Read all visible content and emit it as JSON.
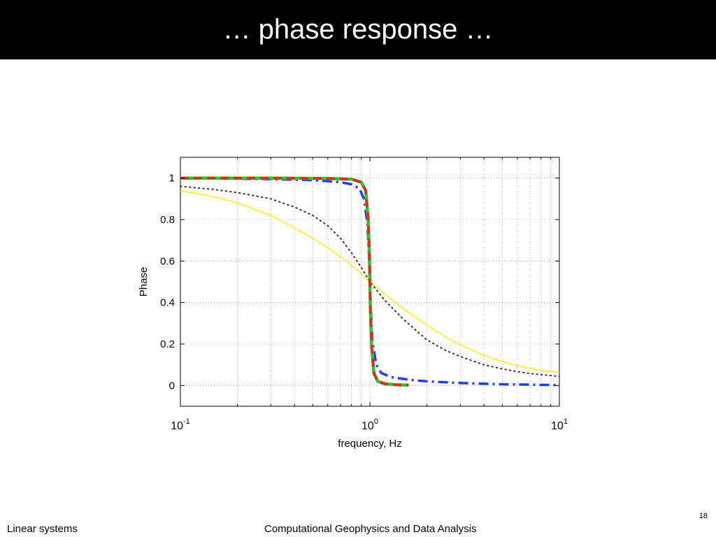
{
  "slide": {
    "title": "… phase response …",
    "number": "18",
    "footer_left": "Linear systems",
    "footer_center": "Computational Geophysics and Data Analysis"
  },
  "chart_data": {
    "type": "line",
    "title": "",
    "xlabel": "frequency, Hz",
    "ylabel": "Phase",
    "xscale": "log",
    "xlim": [
      0.1,
      10
    ],
    "ylim": [
      -0.1,
      1.1
    ],
    "xticks": [
      {
        "value": 0.1,
        "base": "10",
        "exp": "-1"
      },
      {
        "value": 1,
        "base": "10",
        "exp": "0"
      },
      {
        "value": 10,
        "base": "10",
        "exp": "1"
      }
    ],
    "yticks": [
      0,
      0.2,
      0.4,
      0.6,
      0.8,
      1
    ],
    "grid": true,
    "series": [
      {
        "color": "#ffee00",
        "style": "solid",
        "x": [
          0.1,
          0.15,
          0.2,
          0.3,
          0.4,
          0.5,
          0.6,
          0.7,
          0.8,
          0.9,
          1.0,
          1.2,
          1.5,
          2,
          2.5,
          3,
          4,
          5,
          6,
          7,
          8,
          10
        ],
        "y": [
          0.94,
          0.91,
          0.88,
          0.82,
          0.76,
          0.71,
          0.665,
          0.62,
          0.58,
          0.54,
          0.5,
          0.44,
          0.37,
          0.29,
          0.235,
          0.195,
          0.145,
          0.115,
          0.095,
          0.082,
          0.073,
          0.063
        ]
      },
      {
        "color": "#333333",
        "style": "dotted",
        "x": [
          0.1,
          0.15,
          0.2,
          0.3,
          0.4,
          0.5,
          0.6,
          0.7,
          0.8,
          0.9,
          1.0,
          1.2,
          1.5,
          2,
          2.5,
          3,
          4,
          5,
          6,
          7,
          8,
          10
        ],
        "y": [
          0.96,
          0.945,
          0.93,
          0.9,
          0.86,
          0.82,
          0.77,
          0.71,
          0.64,
          0.57,
          0.5,
          0.41,
          0.32,
          0.22,
          0.17,
          0.14,
          0.1,
          0.08,
          0.067,
          0.058,
          0.052,
          0.044
        ]
      },
      {
        "color": "#1f3cff",
        "style": "dashdot",
        "x": [
          0.1,
          0.3,
          0.5,
          0.7,
          0.8,
          0.88,
          0.93,
          0.97,
          0.99,
          1.0,
          1.01,
          1.03,
          1.08,
          1.15,
          1.3,
          1.6,
          2,
          3,
          5,
          10
        ],
        "y": [
          1.0,
          0.995,
          0.99,
          0.98,
          0.97,
          0.95,
          0.9,
          0.78,
          0.62,
          0.5,
          0.38,
          0.22,
          0.1,
          0.06,
          0.04,
          0.028,
          0.02,
          0.012,
          0.006,
          0.002
        ]
      },
      {
        "color": "#22cc22",
        "style": "solid",
        "x": [
          0.1,
          0.3,
          0.6,
          0.8,
          0.9,
          0.95,
          0.98,
          0.995,
          1.0,
          1.005,
          1.02,
          1.05,
          1.1,
          1.2,
          1.4,
          1.6
        ],
        "y": [
          1.0,
          1.0,
          0.998,
          0.995,
          0.98,
          0.94,
          0.8,
          0.62,
          0.5,
          0.38,
          0.2,
          0.06,
          0.02,
          0.008,
          0.003,
          0.002
        ]
      },
      {
        "color": "#ee2222",
        "style": "dashed",
        "x": [
          0.1,
          0.3,
          0.6,
          0.8,
          0.9,
          0.95,
          0.98,
          0.995,
          1.0,
          1.005,
          1.02,
          1.05,
          1.1,
          1.2,
          1.4,
          1.6
        ],
        "y": [
          1.0,
          1.0,
          0.998,
          0.995,
          0.98,
          0.94,
          0.8,
          0.62,
          0.5,
          0.38,
          0.2,
          0.06,
          0.02,
          0.008,
          0.003,
          0.002
        ]
      }
    ]
  }
}
